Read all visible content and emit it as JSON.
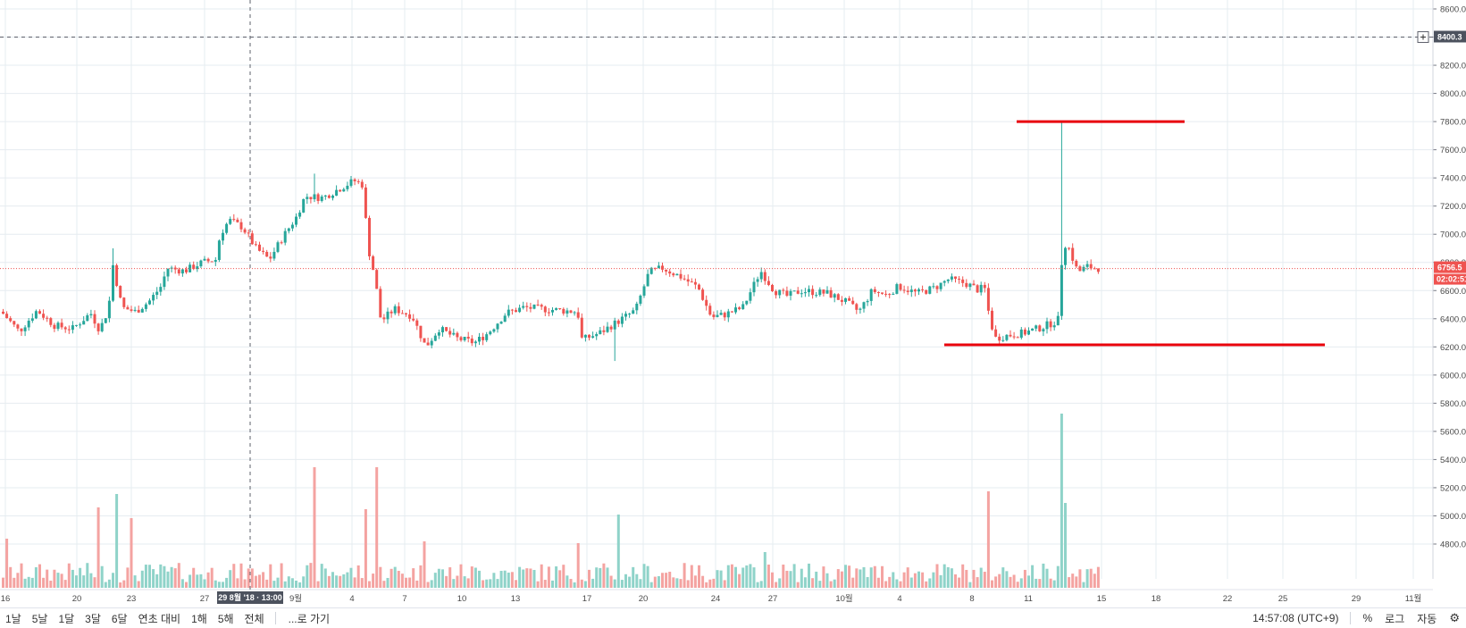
{
  "chart_data": {
    "type": "candlestick",
    "title": "",
    "price_axis": {
      "ticks": [
        "8600.0",
        "8400.0",
        "8200.0",
        "8000.0",
        "7800.0",
        "7600.0",
        "7400.0",
        "7200.0",
        "7000.0",
        "6800.0",
        "6600.0",
        "6400.0",
        "6200.0",
        "6000.0",
        "5800.0",
        "5600.0",
        "5400.0",
        "5200.0",
        "5000.0",
        "4800.0"
      ],
      "range": [
        4650,
        8650
      ]
    },
    "time_axis": {
      "ticks": [
        "16",
        "20",
        "23",
        "27",
        "29 8월 '18 · 13:00",
        "9월",
        "4",
        "7",
        "10",
        "13",
        "17",
        "20",
        "24",
        "27",
        "10월",
        "4",
        "8",
        "11",
        "15",
        "18",
        "22",
        "25",
        "29",
        "11월"
      ]
    },
    "crosshair": {
      "price_label": "8400.3",
      "time_label": "29 8월 '18 · 13:00"
    },
    "last_price": {
      "value": "6756.5",
      "countdown": "02:02:51",
      "color": "#ef5350"
    },
    "horizontal_lines": [
      {
        "price": 7800,
        "color": "#e8000b"
      },
      {
        "price": 6215,
        "color": "#e8000b"
      }
    ],
    "colors": {
      "up": "#26a69a",
      "down": "#ef5350",
      "up_volume": "#8fd3c9",
      "down_volume": "#f4a3a1",
      "grid": "#e6ecf0"
    },
    "grid": true,
    "series": [
      {
        "type": "ohlc",
        "key_points": [
          [
            0,
            6450
          ],
          [
            10,
            6380
          ],
          [
            20,
            6310
          ],
          [
            40,
            6460
          ],
          [
            60,
            6350
          ],
          [
            80,
            6330
          ],
          [
            100,
            6440
          ],
          [
            110,
            6320
          ],
          [
            120,
            6470
          ],
          [
            125,
            6780
          ],
          [
            135,
            6480
          ],
          [
            150,
            6450
          ],
          [
            165,
            6520
          ],
          [
            180,
            6640
          ],
          [
            185,
            6760
          ],
          [
            205,
            6740
          ],
          [
            225,
            6800
          ],
          [
            240,
            6820
          ],
          [
            245,
            7000
          ],
          [
            255,
            7100
          ],
          [
            270,
            7050
          ],
          [
            285,
            6900
          ],
          [
            300,
            6820
          ],
          [
            315,
            6980
          ],
          [
            330,
            7120
          ],
          [
            340,
            7270
          ],
          [
            360,
            7260
          ],
          [
            380,
            7330
          ],
          [
            395,
            7380
          ],
          [
            405,
            7350
          ],
          [
            410,
            6920
          ],
          [
            418,
            6700
          ],
          [
            425,
            6380
          ],
          [
            440,
            6470
          ],
          [
            460,
            6420
          ],
          [
            475,
            6200
          ],
          [
            490,
            6330
          ],
          [
            510,
            6260
          ],
          [
            530,
            6230
          ],
          [
            545,
            6300
          ],
          [
            565,
            6440
          ],
          [
            585,
            6480
          ],
          [
            605,
            6470
          ],
          [
            625,
            6460
          ],
          [
            645,
            6450
          ],
          [
            650,
            6250
          ],
          [
            670,
            6300
          ],
          [
            690,
            6380
          ],
          [
            710,
            6460
          ],
          [
            725,
            6730
          ],
          [
            740,
            6760
          ],
          [
            760,
            6700
          ],
          [
            780,
            6620
          ],
          [
            795,
            6410
          ],
          [
            810,
            6430
          ],
          [
            830,
            6480
          ],
          [
            850,
            6740
          ],
          [
            865,
            6600
          ],
          [
            880,
            6560
          ],
          [
            895,
            6600
          ],
          [
            910,
            6590
          ],
          [
            925,
            6580
          ],
          [
            945,
            6520
          ],
          [
            960,
            6450
          ],
          [
            975,
            6600
          ],
          [
            990,
            6570
          ],
          [
            1005,
            6630
          ],
          [
            1025,
            6580
          ],
          [
            1045,
            6620
          ],
          [
            1060,
            6680
          ],
          [
            1080,
            6650
          ],
          [
            1095,
            6600
          ],
          [
            1100,
            6640
          ],
          [
            1105,
            6450
          ],
          [
            1112,
            6260
          ],
          [
            1125,
            6280
          ],
          [
            1145,
            6300
          ],
          [
            1165,
            6340
          ],
          [
            1180,
            6380
          ],
          [
            1184,
            6400
          ],
          [
            1188,
            6950
          ],
          [
            1195,
            6900
          ],
          [
            1205,
            6730
          ],
          [
            1215,
            6770
          ],
          [
            1225,
            6760
          ]
        ]
      }
    ],
    "volume_spikes": [
      [
        3,
        "d",
        55
      ],
      [
        105,
        "d",
        90
      ],
      [
        127,
        "u",
        105
      ],
      [
        143,
        "d",
        78
      ],
      [
        348,
        "d",
        135
      ],
      [
        407,
        "d",
        88
      ],
      [
        420,
        "d",
        135
      ],
      [
        472,
        "d",
        52
      ],
      [
        645,
        "d",
        50
      ],
      [
        687,
        "u",
        82
      ],
      [
        853,
        "u",
        40
      ],
      [
        1104,
        "d",
        108
      ],
      [
        1186,
        "u",
        195
      ],
      [
        1189,
        "u",
        95
      ]
    ]
  },
  "bottom_bar": {
    "ranges": [
      "1날",
      "5날",
      "1달",
      "3달",
      "6달",
      "연초 대비",
      "1해",
      "5해",
      "전체"
    ],
    "goto_label": "...로 가기",
    "clock": "14:57:08 (UTC+9)",
    "percent_label": "%",
    "log_label": "로그",
    "auto_label": "자동",
    "settings_icon": "gear-icon"
  }
}
